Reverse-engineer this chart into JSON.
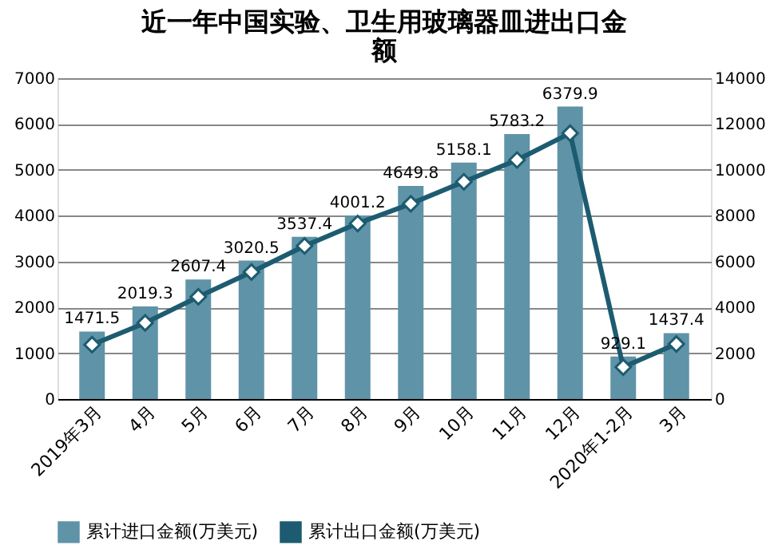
{
  "chart_data": {
    "type": "bar",
    "title": "近一年中国实验、卫生用玻璃器皿进出口金额",
    "categories": [
      "2019年3月",
      "4月",
      "5月",
      "6月",
      "7月",
      "8月",
      "9月",
      "10月",
      "11月",
      "12月",
      "2020年1-2月",
      "3月"
    ],
    "series": [
      {
        "name": "累计进口金额(万美元)",
        "color": "#5f93a8",
        "values": [
          1471.5,
          2019.3,
          2607.4,
          3020.5,
          3537.4,
          4001.2,
          4649.8,
          5158.1,
          5783.2,
          6379.9,
          929.1,
          1437.4
        ],
        "value_labels": [
          "1471.5",
          "2019.3",
          "2607.4",
          "3020.5",
          "3537.4",
          "4001.2",
          "4649.8",
          "5158.1",
          "5783.2",
          "6379.9",
          "929.1",
          "1437.4"
        ]
      },
      {
        "name": "累计出口金额(万美元)",
        "type": "line",
        "axis": "y2",
        "color": "#1d5c70",
        "marker": "diamond",
        "values": [
          2370,
          3320,
          4460,
          5540,
          6680,
          7660,
          8520,
          9480,
          10430,
          11600,
          1390,
          2400
        ]
      }
    ],
    "ylim": [
      0,
      7000
    ],
    "yticks": [
      0,
      1000,
      2000,
      3000,
      4000,
      5000,
      6000,
      7000
    ],
    "y2lim": [
      0,
      14000
    ],
    "y2ticks": [
      0,
      2000,
      4000,
      6000,
      8000,
      10000,
      12000,
      14000
    ],
    "grid": "y",
    "legend": "bottom"
  }
}
